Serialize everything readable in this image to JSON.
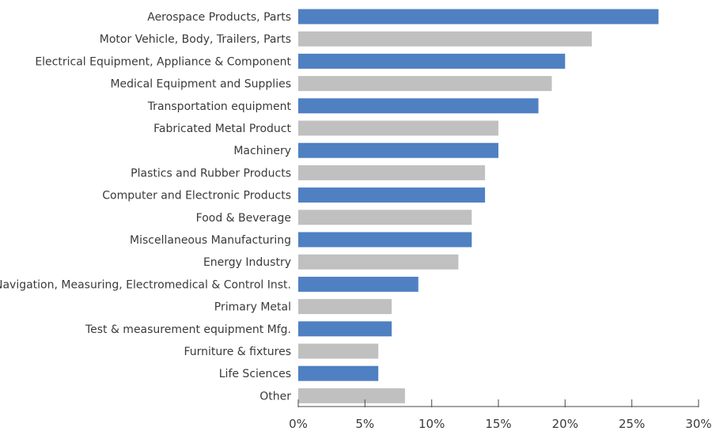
{
  "chart_data": {
    "type": "bar",
    "orientation": "horizontal",
    "categories": [
      "Aerospace Products, Parts",
      "Motor Vehicle, Body, Trailers, Parts",
      "Electrical Equipment, Appliance & Component",
      "Medical Equipment and Supplies",
      "Transportation equipment",
      "Fabricated Metal Product",
      "Machinery",
      "Plastics and Rubber Products",
      "Computer and Electronic Products",
      "Food & Beverage",
      "Miscellaneous Manufacturing",
      "Energy Industry",
      "Navigation, Measuring, Electromedical & Control Inst.",
      "Primary Metal",
      "Test & measurement equipment Mfg.",
      "Furniture & fixtures",
      "Life Sciences",
      "Other"
    ],
    "values": [
      27,
      22,
      20,
      19,
      18,
      15,
      15,
      14,
      14,
      13,
      13,
      12,
      9,
      7,
      7,
      6,
      6,
      8
    ],
    "x_ticks": [
      "0%",
      "5%",
      "10%",
      "15%",
      "20%",
      "25%",
      "30%"
    ],
    "xlim": [
      0,
      30
    ],
    "xlabel": "",
    "ylabel": "",
    "title": "",
    "grid": false,
    "colors": {
      "blue": "#4f80c2",
      "gray": "#c0c0c0",
      "axis": "#4a4a4a",
      "text": "#3a3a3a"
    },
    "color_pattern": "alternating blue / gray starting with blue"
  }
}
